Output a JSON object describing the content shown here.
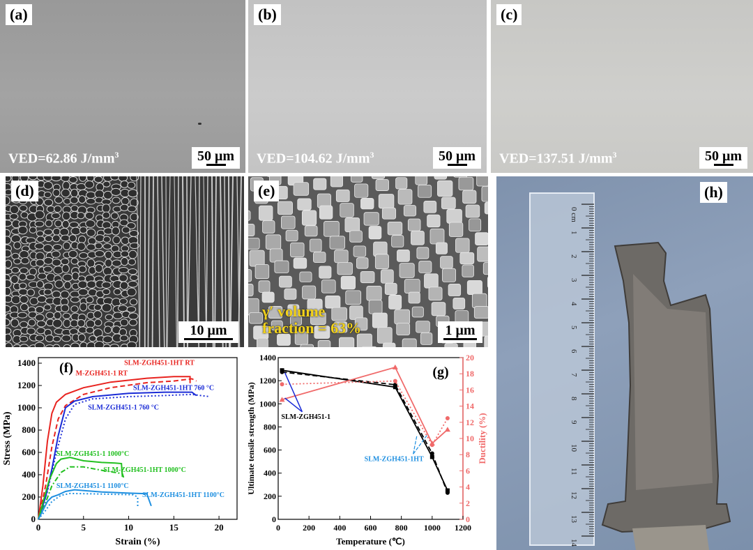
{
  "panels": {
    "a": {
      "label": "(a)",
      "ved_prefix": "VED=62.86 J/mm",
      "ved_exp": "3",
      "scale": "50 μm"
    },
    "b": {
      "label": "(b)",
      "ved_prefix": "VED=104.62 J/mm",
      "ved_exp": "3",
      "scale": "50 μm"
    },
    "c": {
      "label": "(c)",
      "ved_prefix": "VED=137.51 J/mm",
      "ved_exp": "3",
      "scale": "50 μm"
    },
    "d": {
      "label": "(d)",
      "scale": "10 μm"
    },
    "e": {
      "label": "(e)",
      "scale": "1 μm",
      "gamma_line1": "γ′ volume",
      "gamma_line2": "fraction = 63%"
    },
    "h": {
      "label": "(h)",
      "ruler_ticks": [
        "0 cm",
        "1",
        "2",
        "3",
        "4",
        "5",
        "6",
        "7",
        "8",
        "9",
        "10",
        "11",
        "12",
        "13",
        "14"
      ]
    }
  },
  "chart_data": [
    {
      "id": "f",
      "type": "line",
      "panel_label": "(f)",
      "xlabel": "Strain (%)",
      "ylabel": "Stress (MPa)",
      "xlim": [
        0,
        22
      ],
      "ylim": [
        0,
        1450
      ],
      "xticks": [
        0,
        5,
        10,
        15,
        20
      ],
      "yticks": [
        0,
        200,
        400,
        600,
        800,
        1000,
        1200,
        1400
      ],
      "series": [
        {
          "name": "SLM-ZGH451-1 RT",
          "color": "#e8231f",
          "dash": "solid",
          "points": [
            [
              0,
              0
            ],
            [
              0.5,
              300
            ],
            [
              1,
              700
            ],
            [
              1.5,
              950
            ],
            [
              2,
              1050
            ],
            [
              3,
              1120
            ],
            [
              5,
              1180
            ],
            [
              8,
              1230
            ],
            [
              12,
              1265
            ],
            [
              15,
              1280
            ],
            [
              16.8,
              1280
            ],
            [
              16.8,
              1220
            ]
          ]
        },
        {
          "name": "SLM-ZGH451-1HT RT",
          "color": "#e8231f",
          "dash": "dash",
          "points": [
            [
              0,
              0
            ],
            [
              0.8,
              300
            ],
            [
              1.5,
              650
            ],
            [
              2.2,
              900
            ],
            [
              3,
              1020
            ],
            [
              5,
              1120
            ],
            [
              8,
              1180
            ],
            [
              12,
              1225
            ],
            [
              15,
              1240
            ],
            [
              17,
              1260
            ],
            [
              17.5,
              1240
            ]
          ]
        },
        {
          "name": "SLM-ZGH451-1 760 °C",
          "color": "#1a2bd6",
          "dash": "solid",
          "points": [
            [
              0,
              0
            ],
            [
              0.8,
              200
            ],
            [
              1.5,
              450
            ],
            [
              2.2,
              750
            ],
            [
              3,
              1000
            ],
            [
              4,
              1060
            ],
            [
              6,
              1100
            ],
            [
              10,
              1130
            ],
            [
              14,
              1140
            ],
            [
              17,
              1140
            ],
            [
              17.5,
              1110
            ]
          ]
        },
        {
          "name": "SLM-ZGH451-1HT 760 °C",
          "color": "#1a2bd6",
          "dash": "dot",
          "points": [
            [
              0,
              0
            ],
            [
              1,
              250
            ],
            [
              2,
              600
            ],
            [
              3,
              900
            ],
            [
              4,
              1030
            ],
            [
              6,
              1080
            ],
            [
              10,
              1100
            ],
            [
              14,
              1110
            ],
            [
              17,
              1120
            ],
            [
              19,
              1100
            ]
          ]
        },
        {
          "name": "SLM-ZGH451-1 1000°C",
          "color": "#22c020",
          "dash": "solid",
          "points": [
            [
              0,
              0
            ],
            [
              0.5,
              150
            ],
            [
              1.2,
              350
            ],
            [
              2,
              500
            ],
            [
              2.5,
              540
            ],
            [
              3.5,
              555
            ],
            [
              5,
              525
            ],
            [
              7,
              510
            ],
            [
              8.5,
              505
            ],
            [
              9.2,
              500
            ],
            [
              9.3,
              380
            ]
          ]
        },
        {
          "name": "SLM-ZGH451-1HT 1000°C",
          "color": "#22c020",
          "dash": "dashdot",
          "points": [
            [
              0,
              0
            ],
            [
              0.8,
              150
            ],
            [
              1.5,
              300
            ],
            [
              2.5,
              420
            ],
            [
              3.5,
              470
            ],
            [
              5,
              470
            ],
            [
              7,
              440
            ],
            [
              8.5,
              420
            ],
            [
              9.3,
              410
            ],
            [
              9.5,
              360
            ]
          ]
        },
        {
          "name": "SLM-ZGH451-1 1100°C",
          "color": "#1e8fe0",
          "dash": "solid",
          "points": [
            [
              0,
              0
            ],
            [
              0.5,
              80
            ],
            [
              1,
              160
            ],
            [
              1.5,
              200
            ],
            [
              2.2,
              220
            ],
            [
              3,
              250
            ],
            [
              4,
              265
            ],
            [
              7,
              245
            ],
            [
              10,
              235
            ],
            [
              12,
              230
            ],
            [
              12.5,
              120
            ]
          ]
        },
        {
          "name": "SLM-ZGH451-1HT 1100°C",
          "color": "#1e8fe0",
          "dash": "dot",
          "points": [
            [
              0,
              0
            ],
            [
              0.8,
              80
            ],
            [
              1.5,
              160
            ],
            [
              2.5,
              215
            ],
            [
              3.5,
              232
            ],
            [
              5,
              230
            ],
            [
              8,
              225
            ],
            [
              10.5,
              220
            ],
            [
              11,
              200
            ],
            [
              11,
              100
            ]
          ]
        }
      ],
      "annotations": [
        {
          "text": "SLM-ZGH451-1 RT",
          "color": "#e8231f",
          "x": 3.2,
          "y": 1290
        },
        {
          "text": "SLM-ZGH451-1HT RT",
          "color": "#e8231f",
          "x": 9.5,
          "y": 1385
        },
        {
          "text": "SLM-ZGH451-1HT 760 °C",
          "color": "#1a2bd6",
          "x": 10.5,
          "y": 1160
        },
        {
          "text": "SLM-ZGH451-1 760 °C",
          "color": "#1a2bd6",
          "x": 5.5,
          "y": 985
        },
        {
          "text": "SLM-ZGH451-1 1000°C",
          "color": "#22c020",
          "x": 2.0,
          "y": 570
        },
        {
          "text": "SLM-ZGH451-1HT 1000°C",
          "color": "#22c020",
          "x": 7.2,
          "y": 425
        },
        {
          "text": "SLM-ZGH451-1 1100°C",
          "color": "#1e8fe0",
          "x": 2.0,
          "y": 280
        },
        {
          "text": "SLM-ZGH451-1HT 1100°C",
          "color": "#1e8fe0",
          "x": 11.5,
          "y": 200
        }
      ]
    },
    {
      "id": "g",
      "type": "line",
      "panel_label": "(g)",
      "xlabel": "Temperature (℃)",
      "ylabel": "Ultimate tensile strength (MPa)",
      "y2label": "Ductility (%)",
      "xlim": [
        0,
        1200
      ],
      "ylim": [
        0,
        1400
      ],
      "y2lim": [
        0,
        20
      ],
      "xticks": [
        0,
        200,
        400,
        600,
        800,
        1000,
        1200
      ],
      "yticks": [
        0,
        200,
        400,
        600,
        800,
        1000,
        1200,
        1400
      ],
      "y2ticks": [
        0,
        2,
        4,
        6,
        8,
        10,
        12,
        14,
        16,
        18,
        20
      ],
      "series": [
        {
          "name": "SLM-ZGH451-1",
          "axis": "y",
          "color": "#000000",
          "dash": "solid",
          "marker": "square",
          "points": [
            [
              25,
              1290
            ],
            [
              760,
              1145
            ],
            [
              1000,
              540
            ],
            [
              1100,
              250
            ]
          ]
        },
        {
          "name": "SLM-ZGH451-1HT",
          "axis": "y",
          "color": "#000000",
          "dash": "dash",
          "marker": "circle",
          "points": [
            [
              25,
              1275
            ],
            [
              760,
              1165
            ],
            [
              1000,
              570
            ],
            [
              1100,
              230
            ]
          ]
        },
        {
          "name": "SLM-ZGH451-1",
          "axis": "y2",
          "color": "#f06a6a",
          "dash": "solid",
          "marker": "triangle",
          "points": [
            [
              25,
              14.8
            ],
            [
              760,
              18.8
            ],
            [
              1000,
              9.4
            ],
            [
              1100,
              11.1
            ]
          ]
        },
        {
          "name": "SLM-ZGH451-1HT",
          "axis": "y2",
          "color": "#f06a6a",
          "dash": "dot",
          "marker": "circle",
          "points": [
            [
              25,
              16.7
            ],
            [
              760,
              17.1
            ],
            [
              1000,
              9.2
            ],
            [
              1100,
              12.5
            ]
          ]
        }
      ],
      "annotations": [
        {
          "text": "SLM-ZGH451-1",
          "color": "#000000",
          "x": 20,
          "y": 870
        },
        {
          "text": "SLM-ZGH451-1HT",
          "color": "#1e8fe0",
          "x": 560,
          "y": 505
        }
      ]
    }
  ]
}
